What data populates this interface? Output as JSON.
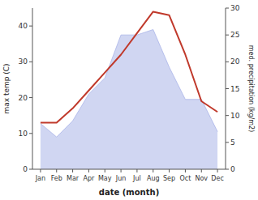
{
  "chart_data": {
    "type": "line",
    "xlabel": "date (month)",
    "ylabel": "max temp (C)",
    "y2label": "med. precipitation (kg/m2)",
    "categories": [
      "Jan",
      "Feb",
      "Mar",
      "Apr",
      "May",
      "Jun",
      "Jul",
      "Aug",
      "Sep",
      "Oct",
      "Nov",
      "Dec"
    ],
    "series": [
      {
        "type": "line",
        "color": "#c0392b",
        "values": [
          13,
          13,
          17,
          22,
          27,
          32,
          38,
          44,
          43,
          32,
          19,
          16
        ]
      },
      {
        "type": "area",
        "axis": "y2",
        "color": "#aab4e8",
        "values": [
          8.5,
          6,
          9,
          14,
          17,
          25,
          25,
          26,
          19,
          13,
          13,
          7
        ]
      }
    ],
    "ylim": [
      0,
      45
    ],
    "yticks": [
      0,
      10,
      20,
      30,
      40
    ],
    "y2lim": [
      0,
      30
    ],
    "y2ticks": [
      0,
      5,
      10,
      15,
      20,
      25,
      30
    ],
    "grid": false
  }
}
